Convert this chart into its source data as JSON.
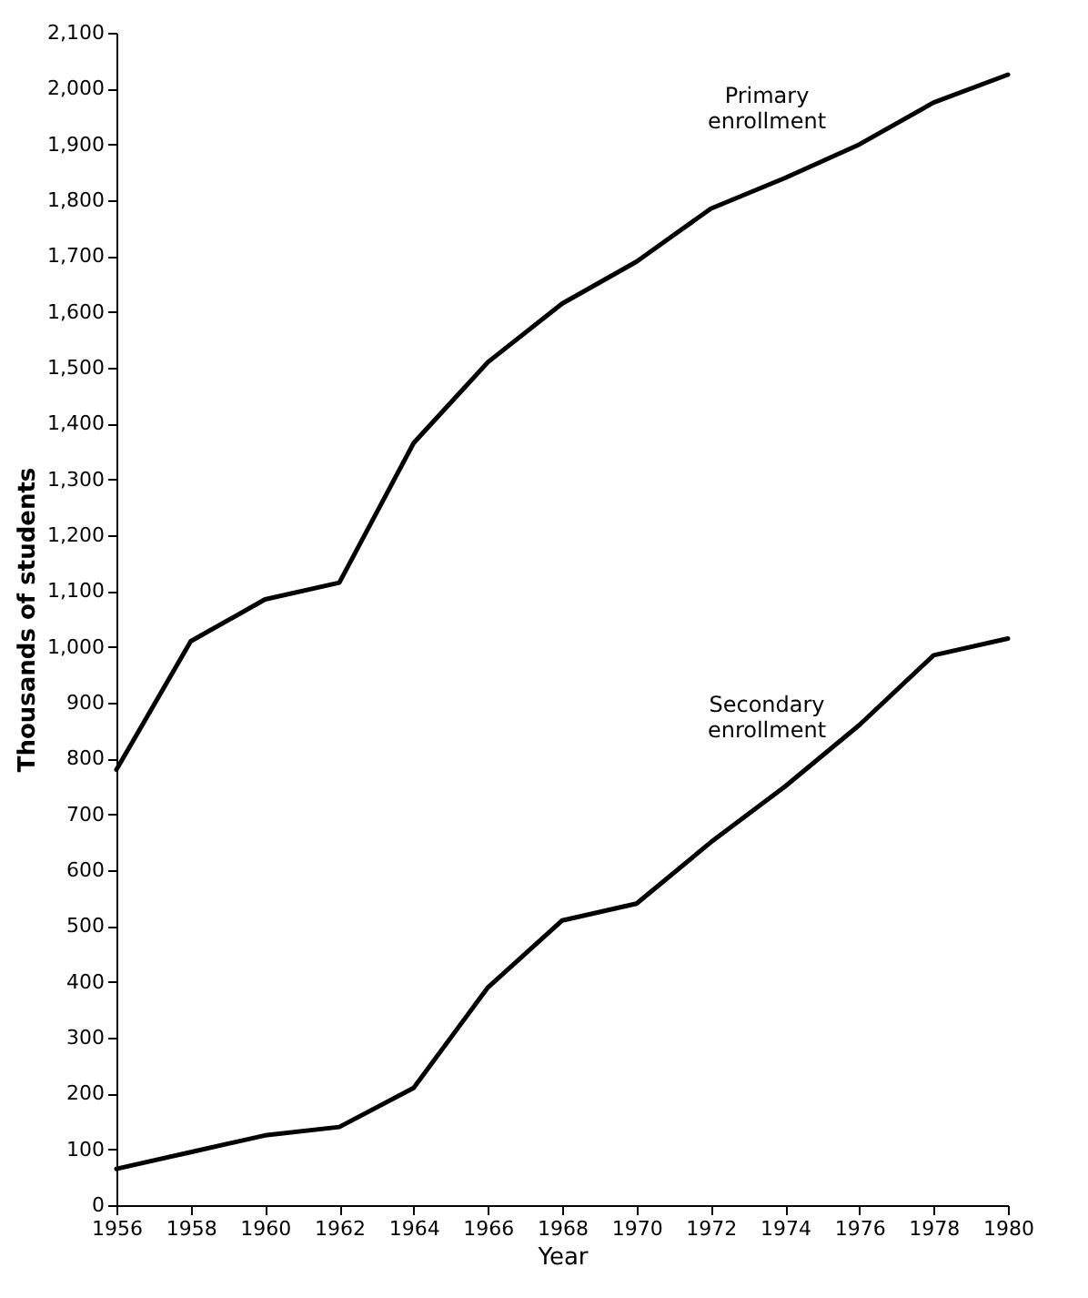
{
  "chart_data": {
    "type": "line",
    "xlabel": "Year",
    "ylabel": "Thousands of students",
    "x": [
      1956,
      1958,
      1960,
      1962,
      1964,
      1966,
      1968,
      1970,
      1972,
      1974,
      1976,
      1978,
      1980
    ],
    "series": [
      {
        "name": "Primary enrollment",
        "color": "#000000",
        "values": [
          780,
          1010,
          1085,
          1115,
          1365,
          1510,
          1615,
          1690,
          1785,
          1840,
          1900,
          1975,
          2025
        ]
      },
      {
        "name": "Secondary enrollment",
        "color": "#000000",
        "values": [
          65,
          95,
          125,
          140,
          210,
          390,
          510,
          540,
          650,
          750,
          860,
          985,
          1015
        ]
      }
    ],
    "xlim": [
      1956,
      1980
    ],
    "xticks": [
      1956,
      1958,
      1960,
      1962,
      1964,
      1966,
      1968,
      1970,
      1972,
      1974,
      1976,
      1978,
      1980
    ],
    "ylim": [
      0,
      2100
    ],
    "yticks": [
      0,
      100,
      200,
      300,
      400,
      500,
      600,
      700,
      800,
      900,
      {
        "value": 1000,
        "label": "1,000"
      },
      {
        "value": 1100,
        "label": "1,100"
      },
      {
        "value": 1200,
        "label": "1,200"
      },
      {
        "value": 1300,
        "label": "1,300"
      },
      {
        "value": 1400,
        "label": "1,400"
      },
      {
        "value": 1500,
        "label": "1,500"
      },
      {
        "value": 1600,
        "label": "1,600"
      },
      {
        "value": 1700,
        "label": "1,700"
      },
      {
        "value": 1800,
        "label": "1,800"
      },
      {
        "value": 1900,
        "label": "1,900"
      },
      {
        "value": 2000,
        "label": "2,000"
      },
      {
        "value": 2100,
        "label": "2,100"
      }
    ],
    "line_style": "solid",
    "grid": false,
    "legend": false
  }
}
